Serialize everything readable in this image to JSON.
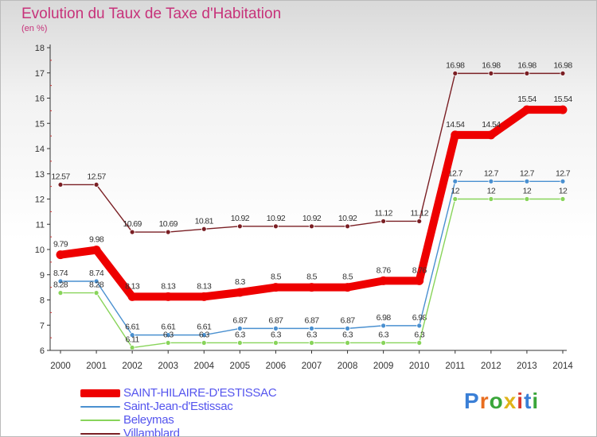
{
  "header": {
    "title": "Evolution du Taux de Taxe d'Habitation",
    "subtitle": "(en %)"
  },
  "brand": {
    "text": "Proxiti",
    "letter_colors": [
      "#3a7fd6",
      "#e86d1f",
      "#3aa63a",
      "#e0b31a",
      "#d9382e",
      "#3a7fd6",
      "#3aa63a"
    ]
  },
  "chart_data": {
    "type": "line",
    "title": "Evolution du Taux de Taxe d'Habitation",
    "ylabel": "(en %)",
    "xlabel": "",
    "x": [
      2000,
      2001,
      2002,
      2003,
      2004,
      2005,
      2006,
      2007,
      2008,
      2009,
      2010,
      2011,
      2012,
      2013,
      2014
    ],
    "ylim": [
      6,
      18
    ],
    "yticks": [
      6,
      7,
      8,
      9,
      10,
      11,
      12,
      13,
      14,
      15,
      16,
      17,
      18
    ],
    "grid": false,
    "legend_position": "bottom-left",
    "series": [
      {
        "name": "Villamblard",
        "color": "#7a1f24",
        "values": [
          12.57,
          12.57,
          10.69,
          10.69,
          10.81,
          10.92,
          10.92,
          10.92,
          10.92,
          11.12,
          11.12,
          16.98,
          16.98,
          16.98,
          16.98
        ],
        "labels": [
          "12.57",
          "12.57",
          "10.69",
          "10.69",
          "10.81",
          "10.92",
          "10.92",
          "10.92",
          "10.92",
          "11.12",
          "11.12",
          "16.98",
          "16.98",
          "16.98",
          "16.98"
        ]
      },
      {
        "name": "Saint-Jean-d'Estissac",
        "color": "#4a90d0",
        "values": [
          8.74,
          8.74,
          6.61,
          6.61,
          6.61,
          6.87,
          6.87,
          6.87,
          6.87,
          6.98,
          6.98,
          12.7,
          12.7,
          12.7,
          12.7
        ],
        "labels": [
          "8.74",
          "8.74",
          "6.61",
          "6.61",
          "6.61",
          "6.87",
          "6.87",
          "6.87",
          "6.87",
          "6.98",
          "6.98",
          "12.7",
          "12.7",
          "12.7",
          "12.7"
        ]
      },
      {
        "name": "Beleymas",
        "color": "#88d45a",
        "values": [
          8.28,
          8.28,
          6.11,
          6.3,
          6.3,
          6.3,
          6.3,
          6.3,
          6.3,
          6.3,
          6.3,
          12,
          12,
          12,
          12
        ],
        "labels": [
          "8.28",
          "8.28",
          "6.11",
          "6.3",
          "6.3",
          "6.3",
          "6.3",
          "6.3",
          "6.3",
          "6.3",
          "6.3",
          "12",
          "12",
          "12",
          "12"
        ]
      },
      {
        "name": "SAINT-HILAIRE-D'ESTISSAC",
        "color": "#ee0000",
        "values": [
          9.79,
          9.98,
          8.13,
          8.13,
          8.13,
          8.3,
          8.5,
          8.5,
          8.5,
          8.76,
          8.76,
          14.54,
          14.54,
          15.54,
          15.54
        ],
        "labels": [
          "9.79",
          "9.98",
          "8.13",
          "8.13",
          "8.13",
          "8.3",
          "8.5",
          "8.5",
          "8.5",
          "8.76",
          "8.76",
          "14.54",
          "14.54",
          "15.54",
          "15.54"
        ]
      }
    ],
    "legend": [
      "SAINT-HILAIRE-D'ESTISSAC",
      "Saint-Jean-d'Estissac",
      "Beleymas",
      "Villamblard"
    ]
  }
}
